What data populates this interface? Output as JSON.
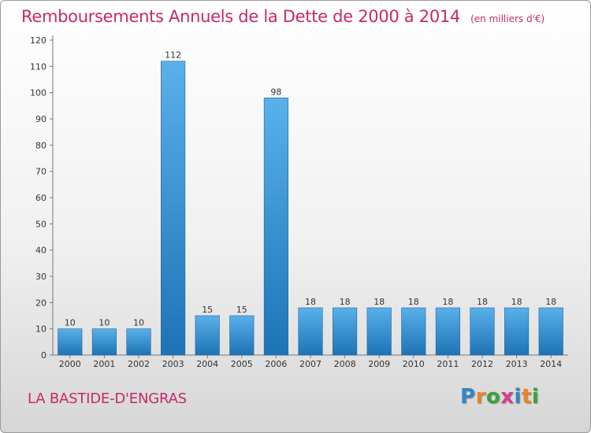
{
  "title": "Remboursements Annuels de la Dette de 2000 à 2014",
  "unit": "(en milliers d'€)",
  "commune": "LA BASTIDE-D'ENGRAS",
  "logo": {
    "letters": [
      "P",
      "r",
      "o",
      "x",
      "i",
      "t",
      "i"
    ],
    "colors": [
      "#2f86c9",
      "#e9851f",
      "#3aa33a",
      "#d63f8c",
      "#2f86c9",
      "#e9851f",
      "#3aa33a"
    ]
  },
  "colors": {
    "title": "#c8286a",
    "bar_top": "#5ab0ea",
    "bar_bottom": "#1e73b5"
  },
  "chart_data": {
    "type": "bar",
    "categories": [
      "2000",
      "2001",
      "2002",
      "2003",
      "2004",
      "2005",
      "2006",
      "2007",
      "2008",
      "2009",
      "2010",
      "2011",
      "2012",
      "2013",
      "2014"
    ],
    "values": [
      10,
      10,
      10,
      112,
      15,
      15,
      98,
      18,
      18,
      18,
      18,
      18,
      18,
      18,
      18
    ],
    "ylim": [
      0,
      120
    ],
    "yticks": [
      0,
      10,
      20,
      30,
      40,
      50,
      60,
      70,
      80,
      90,
      100,
      110,
      120
    ],
    "grid": false
  }
}
